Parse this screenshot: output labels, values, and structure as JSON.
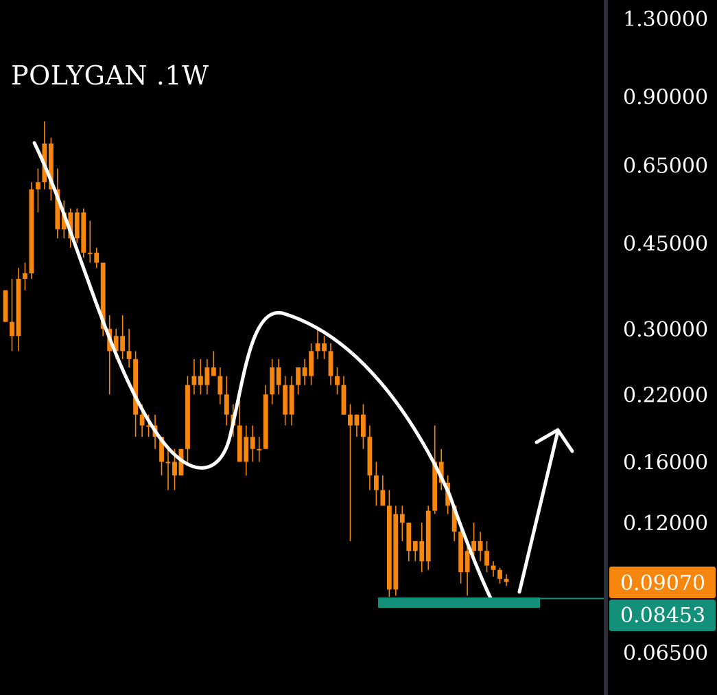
{
  "ticker": "POLYGAN .1W",
  "colors": {
    "background": "#000000",
    "candle": "#f7860f",
    "support": "#13907a",
    "current_tag": "#f7860f",
    "support_tag": "#13907a",
    "annotation": "#ffffff",
    "axis_divider": "#2a2e39"
  },
  "chart_data": {
    "type": "candlestick",
    "y_scale": "log",
    "ylim": [
      0.058,
      1.38
    ],
    "y_ticks": [
      "1.30000",
      "0.90000",
      "0.65000",
      "0.45000",
      "0.30000",
      "0.22000",
      "0.16000",
      "0.12000",
      "0.06500"
    ],
    "y_tick_values": [
      1.3,
      0.9,
      0.65,
      0.45,
      0.3,
      0.22,
      0.16,
      0.12,
      0.065
    ],
    "current_price": {
      "label": "0.09070",
      "value": 0.0907
    },
    "support_price": {
      "label": "0.08453",
      "value": 0.08453
    },
    "candles": [
      [
        0.36,
        0.36,
        0.31,
        0.31
      ],
      [
        0.31,
        0.38,
        0.27,
        0.29
      ],
      [
        0.29,
        0.4,
        0.27,
        0.38
      ],
      [
        0.38,
        0.41,
        0.36,
        0.39
      ],
      [
        0.39,
        0.6,
        0.38,
        0.58
      ],
      [
        0.58,
        0.64,
        0.52,
        0.6
      ],
      [
        0.6,
        0.8,
        0.58,
        0.72
      ],
      [
        0.72,
        0.74,
        0.55,
        0.58
      ],
      [
        0.58,
        0.64,
        0.46,
        0.48
      ],
      [
        0.48,
        0.55,
        0.46,
        0.52
      ],
      [
        0.52,
        0.53,
        0.44,
        0.46
      ],
      [
        0.46,
        0.53,
        0.45,
        0.52
      ],
      [
        0.52,
        0.53,
        0.42,
        0.43
      ],
      [
        0.43,
        0.5,
        0.41,
        0.43
      ],
      [
        0.43,
        0.44,
        0.4,
        0.41
      ],
      [
        0.41,
        0.41,
        0.29,
        0.3
      ],
      [
        0.3,
        0.32,
        0.22,
        0.27
      ],
      [
        0.27,
        0.3,
        0.26,
        0.29
      ],
      [
        0.29,
        0.32,
        0.26,
        0.27
      ],
      [
        0.27,
        0.3,
        0.25,
        0.26
      ],
      [
        0.26,
        0.27,
        0.18,
        0.2
      ],
      [
        0.2,
        0.21,
        0.18,
        0.19
      ],
      [
        0.19,
        0.2,
        0.18,
        0.19
      ],
      [
        0.19,
        0.2,
        0.17,
        0.18
      ],
      [
        0.18,
        0.18,
        0.15,
        0.16
      ],
      [
        0.16,
        0.17,
        0.14,
        0.16
      ],
      [
        0.16,
        0.17,
        0.14,
        0.15
      ],
      [
        0.15,
        0.17,
        0.15,
        0.17
      ],
      [
        0.17,
        0.24,
        0.16,
        0.23
      ],
      [
        0.23,
        0.26,
        0.22,
        0.24
      ],
      [
        0.24,
        0.26,
        0.22,
        0.23
      ],
      [
        0.23,
        0.26,
        0.22,
        0.25
      ],
      [
        0.25,
        0.27,
        0.24,
        0.24
      ],
      [
        0.24,
        0.25,
        0.21,
        0.22
      ],
      [
        0.22,
        0.24,
        0.19,
        0.2
      ],
      [
        0.2,
        0.21,
        0.18,
        0.19
      ],
      [
        0.19,
        0.22,
        0.16,
        0.16
      ],
      [
        0.16,
        0.19,
        0.15,
        0.18
      ],
      [
        0.18,
        0.19,
        0.16,
        0.17
      ],
      [
        0.17,
        0.18,
        0.16,
        0.17
      ],
      [
        0.17,
        0.23,
        0.17,
        0.22
      ],
      [
        0.22,
        0.26,
        0.21,
        0.25
      ],
      [
        0.25,
        0.26,
        0.22,
        0.23
      ],
      [
        0.23,
        0.24,
        0.19,
        0.2
      ],
      [
        0.2,
        0.24,
        0.19,
        0.23
      ],
      [
        0.23,
        0.25,
        0.22,
        0.25
      ],
      [
        0.25,
        0.26,
        0.23,
        0.24
      ],
      [
        0.24,
        0.28,
        0.23,
        0.27
      ],
      [
        0.27,
        0.3,
        0.26,
        0.28
      ],
      [
        0.28,
        0.29,
        0.26,
        0.27
      ],
      [
        0.27,
        0.28,
        0.23,
        0.24
      ],
      [
        0.24,
        0.25,
        0.22,
        0.23
      ],
      [
        0.23,
        0.24,
        0.2,
        0.2
      ],
      [
        0.2,
        0.21,
        0.11,
        0.19
      ],
      [
        0.19,
        0.2,
        0.18,
        0.2
      ],
      [
        0.2,
        0.21,
        0.17,
        0.18
      ],
      [
        0.18,
        0.19,
        0.14,
        0.15
      ],
      [
        0.15,
        0.16,
        0.13,
        0.14
      ],
      [
        0.14,
        0.15,
        0.13,
        0.13
      ],
      [
        0.13,
        0.14,
        0.0845,
        0.0875
      ],
      [
        0.0875,
        0.13,
        0.085,
        0.125
      ],
      [
        0.125,
        0.13,
        0.11,
        0.12
      ],
      [
        0.12,
        0.12,
        0.1,
        0.105
      ],
      [
        0.105,
        0.11,
        0.1,
        0.11
      ],
      [
        0.11,
        0.12,
        0.095,
        0.1
      ],
      [
        0.1,
        0.13,
        0.096,
        0.127
      ],
      [
        0.127,
        0.19,
        0.125,
        0.16
      ],
      [
        0.16,
        0.17,
        0.14,
        0.145
      ],
      [
        0.145,
        0.15,
        0.125,
        0.13
      ],
      [
        0.13,
        0.13,
        0.11,
        0.115
      ],
      [
        0.115,
        0.12,
        0.09,
        0.095
      ],
      [
        0.095,
        0.11,
        0.085,
        0.105
      ],
      [
        0.105,
        0.12,
        0.1,
        0.11
      ],
      [
        0.11,
        0.115,
        0.1,
        0.105
      ],
      [
        0.105,
        0.11,
        0.095,
        0.098
      ],
      [
        0.098,
        0.1,
        0.093,
        0.096
      ],
      [
        0.096,
        0.097,
        0.09,
        0.092
      ],
      [
        0.092,
        0.094,
        0.089,
        0.0907
      ]
    ]
  }
}
